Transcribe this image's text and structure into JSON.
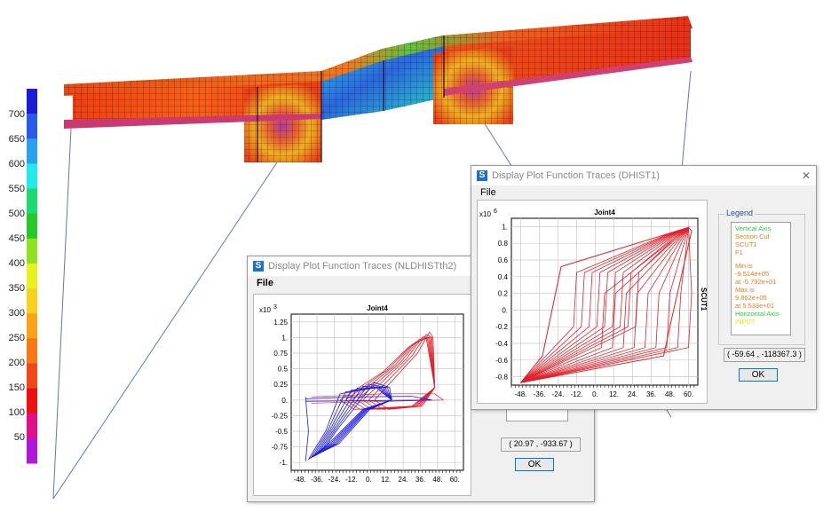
{
  "colorbar": {
    "labels": [
      "700",
      "650",
      "600",
      "550",
      "500",
      "450",
      "400",
      "350",
      "300",
      "250",
      "200",
      "150",
      "100",
      "50"
    ],
    "colors": [
      "#1b1bd8",
      "#2a5ae8",
      "#2aa0ee",
      "#25e8e8",
      "#20d870",
      "#28c828",
      "#90e020",
      "#e8f020",
      "#f8d020",
      "#f8a418",
      "#f87818",
      "#f04818",
      "#ee1010",
      "#e0108a",
      "#b018d8"
    ]
  },
  "window_back": {
    "title": "Display Plot Function Traces  (NLDHISTth2)",
    "icon_letter": "S",
    "menu_file": "File",
    "plot_title": "Joint4",
    "y_exponent": "x10",
    "y_exponent_power": "3",
    "y_ticks": [
      "1.25",
      "1.",
      "0.75",
      "0.5",
      "0.25",
      "0.",
      "-0.25",
      "-0.5",
      "-0.75",
      "-1."
    ],
    "x_ticks": [
      "-48.",
      "-36.",
      "-24.",
      "-12.",
      "0.",
      "12.",
      "24.",
      "36.",
      "48.",
      "60."
    ],
    "coords": "( 20.97 , -933.67 )",
    "ok_label": "OK",
    "series_colors": {
      "a": "#1a1ae0",
      "b": "#e0202a"
    }
  },
  "window_front": {
    "title": "Display Plot Function Traces  (DHIST1)",
    "icon_letter": "S",
    "menu_file": "File",
    "close_glyph": "✕",
    "plot_title": "Joint4",
    "y_exponent": "x10",
    "y_exponent_power": "6",
    "y_ticks": [
      "1.",
      "0.8",
      "0.6",
      "0.4",
      "0.2",
      "0.",
      "-0.2",
      "-0.4",
      "-0.6",
      "-0.8"
    ],
    "x_ticks": [
      "-48.",
      "-36.",
      "-24.",
      "-12.",
      "0.",
      "12.",
      "24.",
      "36.",
      "48.",
      "60."
    ],
    "side_label": "SCUT1",
    "legend_caption": "Legend",
    "legend_lines": {
      "vertical_axis": "Vertical Axis",
      "section_cut": "Section Cut SCUT1",
      "f1": "F1",
      "min": "Min is -9.514e+05",
      "min_at": "at -5.792e+01",
      "max": "Max is 9.862e+05",
      "max_at": "at 5.533e+01",
      "horizontal_axis": "Horizontal Axis",
      "input": "INPUT"
    },
    "coords": "( -59.64 , -118367.3 )",
    "ok_label": "OK",
    "series_color": "#e0202a"
  }
}
